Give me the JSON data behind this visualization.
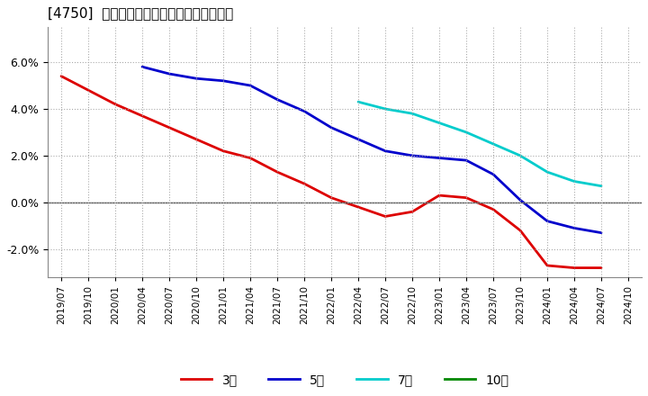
{
  "title": "[4750]  当期純利益マージンの平均値の推移",
  "background_color": "#ffffff",
  "plot_bg_color": "#ffffff",
  "grid_color": "#aaaaaa",
  "zero_line_color": "#555555",
  "ylim": [
    -0.032,
    0.075
  ],
  "yticks": [
    -0.02,
    0.0,
    0.02,
    0.04,
    0.06
  ],
  "series": {
    "3year": {
      "color": "#dd0000",
      "label": "3年",
      "data": [
        [
          "2019/07",
          0.054
        ],
        [
          "2019/10",
          0.048
        ],
        [
          "2020/01",
          0.042
        ],
        [
          "2020/04",
          0.037
        ],
        [
          "2020/07",
          0.032
        ],
        [
          "2020/10",
          0.027
        ],
        [
          "2021/01",
          0.022
        ],
        [
          "2021/04",
          0.019
        ],
        [
          "2021/07",
          0.013
        ],
        [
          "2021/10",
          0.008
        ],
        [
          "2022/01",
          0.002
        ],
        [
          "2022/04",
          -0.002
        ],
        [
          "2022/07",
          -0.006
        ],
        [
          "2022/10",
          -0.004
        ],
        [
          "2023/01",
          0.003
        ],
        [
          "2023/04",
          0.002
        ],
        [
          "2023/07",
          -0.003
        ],
        [
          "2023/10",
          -0.012
        ],
        [
          "2024/01",
          -0.027
        ],
        [
          "2024/04",
          -0.028
        ],
        [
          "2024/07",
          -0.028
        ]
      ]
    },
    "5year": {
      "color": "#0000cc",
      "label": "5年",
      "data": [
        [
          "2020/04",
          0.058
        ],
        [
          "2020/07",
          0.055
        ],
        [
          "2020/10",
          0.053
        ],
        [
          "2021/01",
          0.052
        ],
        [
          "2021/04",
          0.05
        ],
        [
          "2021/07",
          0.044
        ],
        [
          "2021/10",
          0.039
        ],
        [
          "2022/01",
          0.032
        ],
        [
          "2022/04",
          0.027
        ],
        [
          "2022/07",
          0.022
        ],
        [
          "2022/10",
          0.02
        ],
        [
          "2023/01",
          0.019
        ],
        [
          "2023/04",
          0.018
        ],
        [
          "2023/07",
          0.012
        ],
        [
          "2023/10",
          0.001
        ],
        [
          "2024/01",
          -0.008
        ],
        [
          "2024/04",
          -0.011
        ],
        [
          "2024/07",
          -0.013
        ]
      ]
    },
    "7year": {
      "color": "#00cccc",
      "label": "7年",
      "data": [
        [
          "2022/04",
          0.043
        ],
        [
          "2022/07",
          0.04
        ],
        [
          "2022/10",
          0.038
        ],
        [
          "2023/01",
          0.034
        ],
        [
          "2023/04",
          0.03
        ],
        [
          "2023/07",
          0.025
        ],
        [
          "2023/10",
          0.02
        ],
        [
          "2024/01",
          0.013
        ],
        [
          "2024/04",
          0.009
        ],
        [
          "2024/07",
          0.007
        ]
      ]
    },
    "10year": {
      "color": "#008800",
      "label": "10年",
      "data": []
    }
  },
  "xtick_labels": [
    "2019/07",
    "2019/10",
    "2020/01",
    "2020/04",
    "2020/07",
    "2020/10",
    "2021/01",
    "2021/04",
    "2021/07",
    "2021/10",
    "2022/01",
    "2022/04",
    "2022/07",
    "2022/10",
    "2023/01",
    "2023/04",
    "2023/07",
    "2023/10",
    "2024/01",
    "2024/04",
    "2024/07",
    "2024/10"
  ],
  "legend_labels": [
    "3年",
    "5年",
    "7年",
    "10年"
  ],
  "legend_colors": [
    "#dd0000",
    "#0000cc",
    "#00cccc",
    "#008800"
  ],
  "figsize": [
    7.2,
    4.4
  ],
  "dpi": 100
}
